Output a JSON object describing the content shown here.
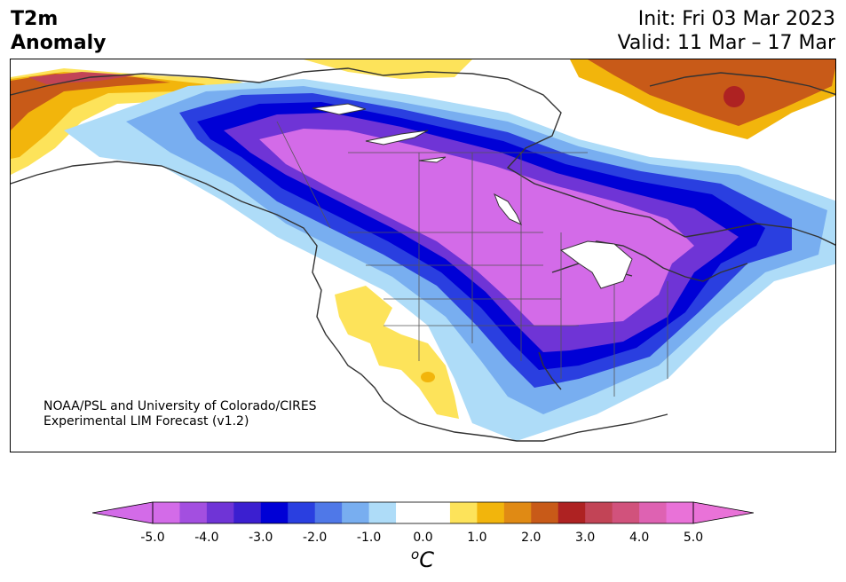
{
  "title": {
    "line1": "T2m",
    "line2": "Anomaly"
  },
  "init": "Init: Fri 03 Mar 2023",
  "valid": "Valid: 11 Mar – 17 Mar",
  "credit": {
    "line1": "NOAA/PSL and University of Colorado/CIRES",
    "line2": "Experimental LIM Forecast (v1.2)"
  },
  "colorbar": {
    "ticks": [
      "-5.0",
      "-4.0",
      "-3.0",
      "-2.0",
      "-1.0",
      "0.0",
      "1.0",
      "2.0",
      "3.0",
      "4.0",
      "5.0"
    ],
    "unit_symbol": "o",
    "unit_letter": "C",
    "colors": [
      "#d36be8",
      "#a34fe0",
      "#6f34d6",
      "#3b1fd0",
      "#0000d6",
      "#2a3fe0",
      "#4f78e8",
      "#78aef0",
      "#aedcf8",
      "#ffffff",
      "#ffffff",
      "#fde35a",
      "#f2b50c",
      "#e08a14",
      "#c85a18",
      "#ae2222",
      "#c24456",
      "#d1527c",
      "#de62b2",
      "#e972d8"
    ],
    "under_color": "#d36be8",
    "over_color": "#e972d8",
    "vmin": -5.0,
    "vmax": 5.0
  },
  "anomaly_colors": {
    "strong_cold": "#d36be8",
    "cold_core": "#0000d6",
    "cool": "#78aef0",
    "slight_cool": "#aedcf8",
    "slight_warm": "#fde35a",
    "warm": "#f2b50c",
    "hot": "#c85a18",
    "very_hot": "#ae2222"
  }
}
